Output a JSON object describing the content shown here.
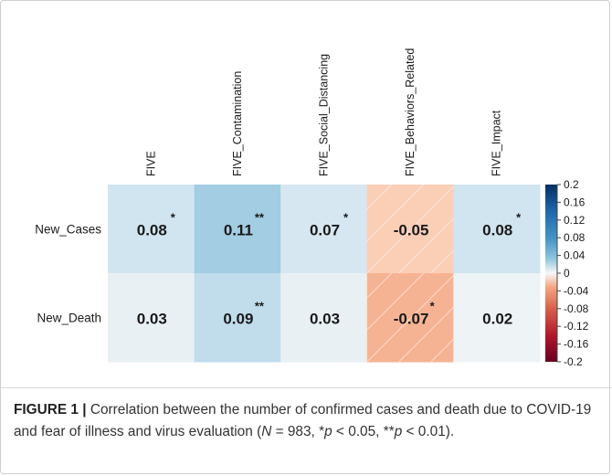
{
  "chart_data": {
    "type": "heatmap",
    "columns": [
      "FIVE",
      "FIVE_Contamination",
      "FIVE_Social_Distancing",
      "FIVE_Behaviors_Related",
      "FIVE_Impact"
    ],
    "rows": [
      "New_Cases",
      "New_Death"
    ],
    "values": [
      [
        0.08,
        0.11,
        0.07,
        -0.05,
        0.08
      ],
      [
        0.03,
        0.09,
        0.03,
        -0.07,
        0.02
      ]
    ],
    "labels": [
      [
        "0.08",
        "0.11",
        "0.07",
        "-0.05",
        "0.08"
      ],
      [
        "0.03",
        "0.09",
        "0.03",
        "-0.07",
        "0.02"
      ]
    ],
    "significance": [
      [
        "*",
        "**",
        "*",
        "",
        "*"
      ],
      [
        "",
        "**",
        "",
        "*",
        ""
      ]
    ],
    "colorbar": {
      "range": [
        -0.2,
        0.2
      ],
      "ticks": [
        "0.2",
        "0.16",
        "0.12",
        "0.08",
        "0.04",
        "0",
        "-0.04",
        "-0.08",
        "-0.12",
        "-0.16",
        "-0.2"
      ],
      "positive_color": "#053061",
      "negative_color": "#67001f",
      "mid_color": "#ffffff"
    },
    "negative_cells_hatched": true
  },
  "caption": {
    "label": "FIGURE 1 |",
    "text_before_n": " Correlation between the number of confirmed cases and death due to COVID-19 and fear of illness and virus evaluation (",
    "n_symbol": "N",
    "after_n": " = 983, *",
    "p1": "p",
    "p1_rest": " < 0.05,",
    "p2_prefix": "**",
    "p2": "p",
    "p2_rest": " < 0.01)."
  }
}
